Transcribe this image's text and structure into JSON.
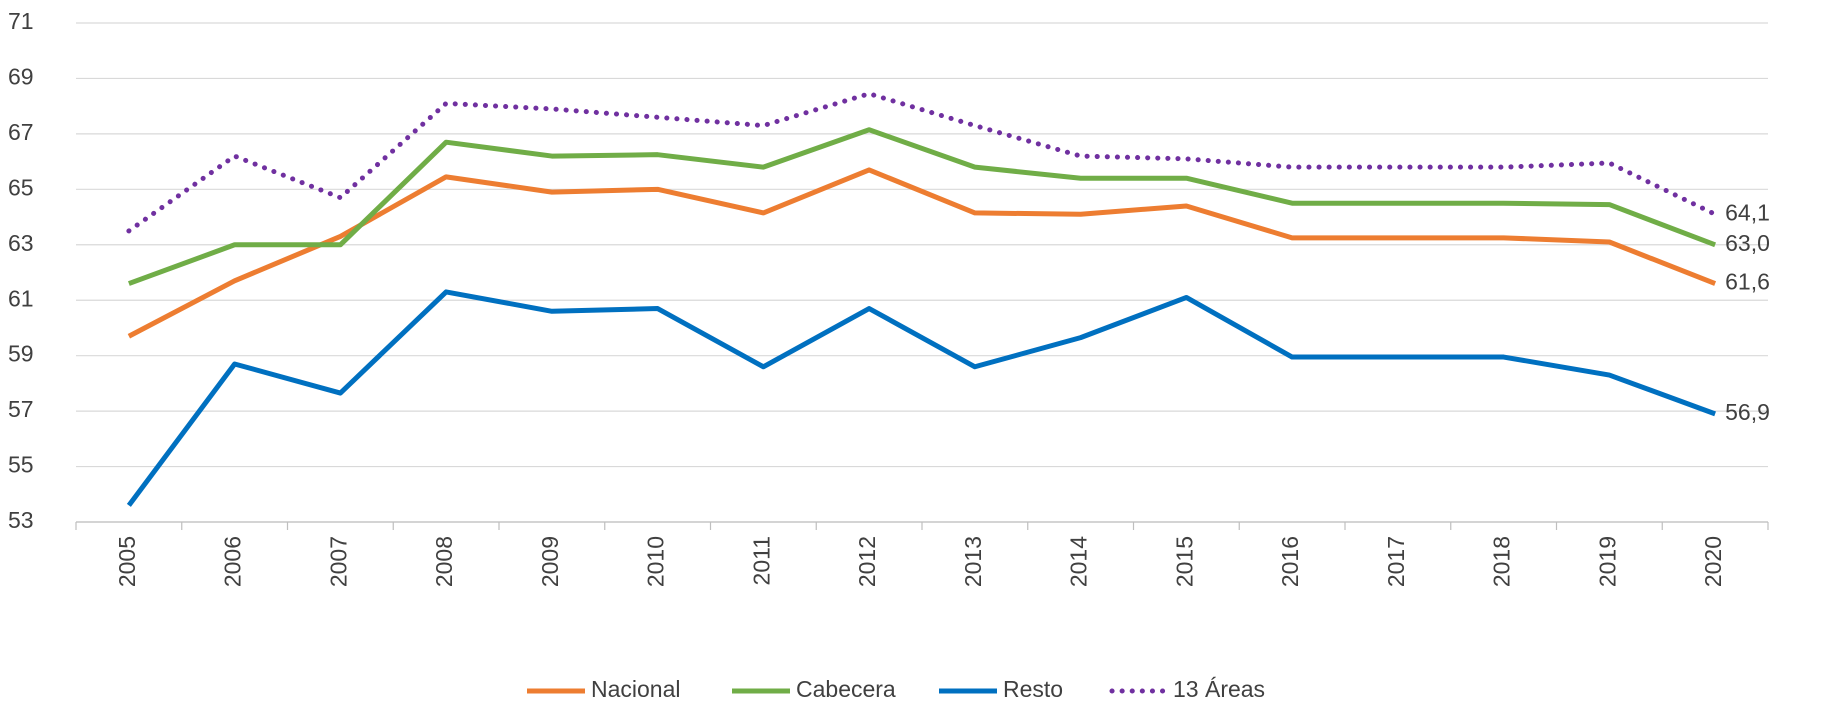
{
  "chart_data": {
    "type": "line",
    "categories": [
      "2005",
      "2006",
      "2007",
      "2008",
      "2009",
      "2010",
      "2011",
      "2012",
      "2013",
      "2014",
      "2015",
      "2016",
      "2017",
      "2018",
      "2019",
      "2020"
    ],
    "series": [
      {
        "name": "Nacional",
        "color": "#ED7D31",
        "style": "solid",
        "values": [
          59.7,
          61.7,
          63.3,
          65.45,
          64.9,
          65.0,
          64.15,
          65.7,
          64.15,
          64.1,
          64.4,
          63.25,
          63.25,
          63.25,
          63.1,
          61.6
        ],
        "value_labels": [
          null,
          null,
          null,
          null,
          null,
          null,
          null,
          null,
          null,
          null,
          null,
          null,
          null,
          null,
          null,
          "61,6"
        ]
      },
      {
        "name": "Cabecera",
        "color": "#70AD47",
        "style": "solid",
        "values": [
          61.6,
          63.0,
          63.0,
          66.7,
          66.2,
          66.25,
          65.8,
          67.15,
          65.8,
          65.4,
          65.4,
          64.5,
          64.5,
          64.5,
          64.45,
          63.0
        ],
        "value_labels": [
          null,
          null,
          null,
          null,
          null,
          null,
          null,
          null,
          null,
          null,
          null,
          null,
          null,
          null,
          null,
          "63,0"
        ]
      },
      {
        "name": "Resto",
        "color": "#0070C0",
        "style": "solid",
        "values": [
          53.6,
          58.7,
          57.65,
          61.3,
          60.6,
          60.7,
          58.6,
          60.7,
          58.6,
          59.65,
          61.1,
          58.95,
          58.95,
          58.95,
          58.3,
          56.9
        ],
        "value_labels": [
          null,
          null,
          null,
          null,
          null,
          null,
          null,
          null,
          null,
          null,
          null,
          null,
          null,
          null,
          null,
          "56,9"
        ]
      },
      {
        "name": "13 Áreas",
        "color": "#7030A0",
        "style": "dotted",
        "values": [
          63.5,
          66.2,
          64.7,
          68.1,
          67.9,
          67.6,
          67.3,
          68.45,
          67.3,
          66.2,
          66.1,
          65.8,
          65.8,
          65.8,
          65.95,
          64.1
        ],
        "value_labels": [
          null,
          null,
          null,
          null,
          null,
          null,
          null,
          null,
          null,
          null,
          null,
          null,
          null,
          null,
          null,
          "64,1"
        ]
      }
    ],
    "ylim": [
      53,
      71
    ],
    "yticks": [
      53,
      55,
      57,
      59,
      61,
      63,
      65,
      67,
      69,
      71
    ],
    "grid": true,
    "legend": "bottom"
  }
}
